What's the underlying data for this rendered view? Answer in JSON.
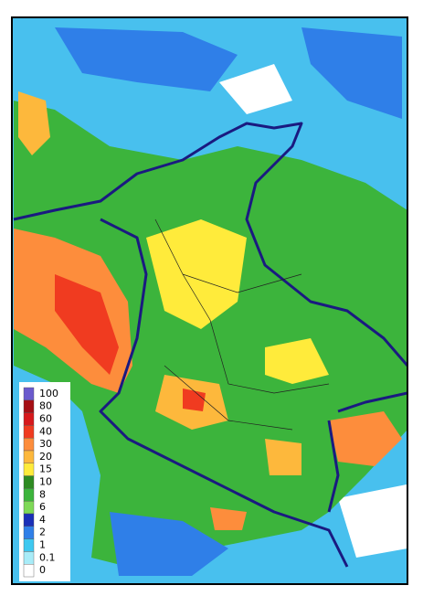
{
  "legend": {
    "levels": [
      {
        "label": "100",
        "color": "#6a5acd"
      },
      {
        "label": "80",
        "color": "#a50f15"
      },
      {
        "label": "60",
        "color": "#d7191c"
      },
      {
        "label": "40",
        "color": "#f03b20"
      },
      {
        "label": "30",
        "color": "#fd8d3c"
      },
      {
        "label": "20",
        "color": "#fdb83c"
      },
      {
        "label": "15",
        "color": "#ffeb3b"
      },
      {
        "label": "10",
        "color": "#2e8b22"
      },
      {
        "label": "8",
        "color": "#3cb43c"
      },
      {
        "label": "6",
        "color": "#7ed957"
      },
      {
        "label": "4",
        "color": "#1a2fb8"
      },
      {
        "label": "2",
        "color": "#2f7fe8"
      },
      {
        "label": "1",
        "color": "#3ec8f0"
      },
      {
        "label": "0.1",
        "color": "#a8ecf8"
      },
      {
        "label": "0",
        "color": "#ffffff"
      }
    ]
  }
}
